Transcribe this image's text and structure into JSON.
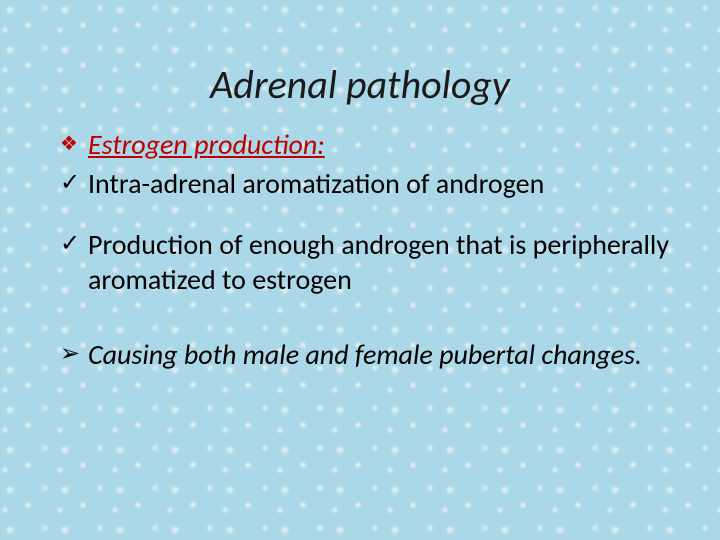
{
  "slide": {
    "title": "Adrenal pathology",
    "title_color": "#1a1a1a",
    "title_fontsize": 40,
    "title_style": "italic",
    "background_color": "#aad8e8",
    "subheading": {
      "bullet_glyph": "❖",
      "bullet_color": "#c00000",
      "text": "Estrogen production:",
      "text_color": "#c00000",
      "fontsize": 28,
      "style": "italic underline"
    },
    "items": [
      {
        "bullet_glyph": "✓",
        "bullet_color": "#000000",
        "text": "Intra-adrenal aromatization of androgen",
        "text_color": "#000000",
        "fontsize": 28,
        "style": "normal"
      },
      {
        "bullet_glyph": "✓",
        "bullet_color": "#000000",
        "text": "Production of enough androgen that is peripherally aromatized to estrogen",
        "text_color": "#000000",
        "fontsize": 28,
        "style": "normal"
      },
      {
        "bullet_glyph": "➢",
        "bullet_color": "#000000",
        "text": " Causing both male and female pubertal changes.",
        "text_color": "#000000",
        "fontsize": 28,
        "style": "italic"
      }
    ]
  }
}
